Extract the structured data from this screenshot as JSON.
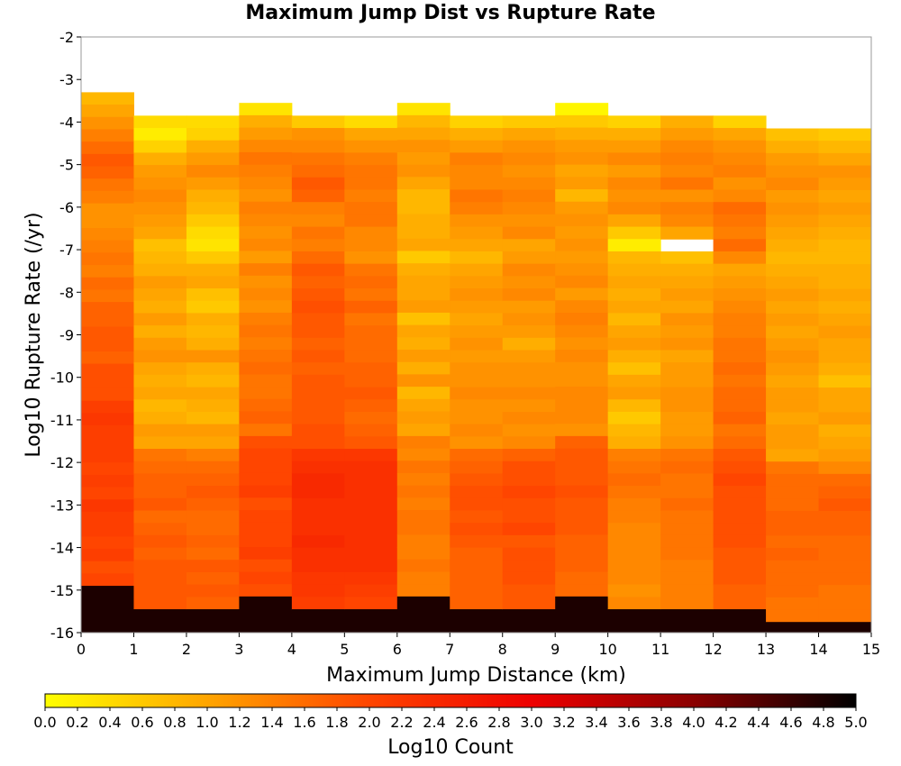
{
  "chart_data": {
    "type": "heatmap",
    "title": "Maximum Jump Dist vs Rupture Rate",
    "xlabel": "Maximum Jump Distance (km)",
    "ylabel": "Log10 Rupture Rate (/yr)",
    "xlim": [
      0,
      15
    ],
    "ylim": [
      -16,
      -2
    ],
    "x_ticks": [
      "0",
      "1",
      "2",
      "3",
      "4",
      "5",
      "6",
      "7",
      "8",
      "9",
      "10",
      "11",
      "12",
      "13",
      "14",
      "15"
    ],
    "y_ticks": [
      "-2",
      "-3",
      "-4",
      "-5",
      "-6",
      "-7",
      "-8",
      "-9",
      "-10",
      "-11",
      "-12",
      "-13",
      "-14",
      "-15",
      "-16"
    ],
    "x_bin_width": 1,
    "y_bin_width": 0.29,
    "colorbar": {
      "label": "Log10 Count",
      "min": 0.0,
      "max": 5.0,
      "ticks": [
        "0.0",
        "0.2",
        "0.4",
        "0.6",
        "0.8",
        "1.0",
        "1.2",
        "1.4",
        "1.6",
        "1.8",
        "2.0",
        "2.2",
        "2.4",
        "2.6",
        "2.8",
        "3.0",
        "3.2",
        "3.4",
        "3.6",
        "3.8",
        "4.0",
        "4.2",
        "4.4",
        "4.6",
        "4.8",
        "5.0"
      ],
      "stops": [
        "#ffff00",
        "#ffa500",
        "#ff4500",
        "#ee0000",
        "#8b0000",
        "#000000"
      ]
    },
    "series": [
      {
        "x": 0.5,
        "top": -3.3,
        "profile": [
          0.8,
          1.0,
          1.2,
          1.4,
          1.6,
          1.8,
          1.7,
          1.5,
          1.4,
          1.2,
          1.2,
          1.3,
          1.4,
          1.5,
          1.4,
          1.6,
          1.5,
          1.7,
          1.7,
          1.8,
          1.8,
          1.7,
          1.9,
          1.9,
          1.9,
          2.1,
          2.2,
          2.1,
          2.1,
          2.1,
          2.0,
          2.1,
          2.0,
          2.2,
          2.1,
          2.1,
          2.0,
          2.1,
          1.9,
          2.0,
          4.8
        ]
      },
      {
        "x": 1.5,
        "top": -3.85,
        "profile": [
          0.4,
          0.2,
          0.5,
          0.9,
          1.1,
          1.2,
          1.3,
          1.2,
          1.1,
          1.0,
          0.7,
          0.8,
          0.9,
          1.1,
          1.0,
          0.9,
          1.1,
          0.9,
          1.1,
          1.2,
          1.0,
          0.9,
          1.0,
          0.8,
          0.9,
          1.1,
          1.0,
          1.5,
          1.6,
          1.7,
          1.7,
          1.8,
          1.6,
          1.7,
          1.8,
          1.7,
          1.8,
          1.8,
          1.8,
          1.8,
          4.8
        ]
      },
      {
        "x": 2.5,
        "top": -3.85,
        "profile": [
          0.4,
          0.5,
          0.9,
          1.1,
          1.3,
          1.1,
          0.9,
          0.8,
          0.6,
          0.4,
          0.3,
          0.6,
          0.9,
          1.0,
          0.7,
          0.6,
          0.9,
          0.8,
          0.9,
          1.2,
          0.9,
          0.8,
          1.0,
          0.9,
          0.8,
          1.1,
          1.0,
          1.4,
          1.6,
          1.7,
          1.8,
          1.7,
          1.6,
          1.6,
          1.7,
          1.6,
          1.8,
          1.7,
          1.8,
          1.7,
          4.8
        ]
      },
      {
        "x": 3.5,
        "top": -3.55,
        "profile": [
          0.3,
          0.9,
          1.1,
          1.3,
          1.5,
          1.4,
          1.3,
          1.2,
          1.4,
          1.3,
          1.2,
          1.3,
          1.1,
          1.4,
          1.2,
          1.3,
          1.2,
          1.4,
          1.5,
          1.4,
          1.5,
          1.6,
          1.5,
          1.5,
          1.6,
          1.7,
          1.5,
          1.9,
          2.0,
          2.0,
          2.0,
          2.1,
          1.9,
          2.0,
          2.0,
          2.0,
          2.1,
          1.9,
          2.0,
          1.9,
          4.8
        ]
      },
      {
        "x": 4.5,
        "top": -3.85,
        "profile": [
          0.6,
          1.2,
          1.3,
          1.5,
          1.6,
          1.8,
          1.7,
          1.4,
          1.3,
          1.5,
          1.4,
          1.6,
          1.8,
          1.7,
          1.8,
          1.9,
          1.8,
          1.8,
          1.7,
          1.8,
          1.7,
          1.8,
          1.8,
          1.8,
          1.8,
          1.9,
          1.9,
          2.2,
          2.3,
          2.4,
          2.4,
          2.3,
          2.3,
          2.3,
          2.4,
          2.3,
          2.3,
          2.2,
          2.2,
          2.1,
          4.8
        ]
      },
      {
        "x": 5.5,
        "top": -3.85,
        "profile": [
          0.4,
          1.0,
          1.2,
          1.4,
          1.5,
          1.5,
          1.4,
          1.5,
          1.5,
          1.3,
          1.3,
          1.2,
          1.5,
          1.6,
          1.5,
          1.7,
          1.5,
          1.6,
          1.6,
          1.6,
          1.7,
          1.7,
          1.8,
          1.7,
          1.6,
          1.7,
          1.8,
          2.2,
          2.3,
          2.3,
          2.3,
          2.3,
          2.3,
          2.3,
          2.3,
          2.3,
          2.3,
          2.2,
          2.1,
          2.0,
          4.8
        ]
      },
      {
        "x": 6.5,
        "top": -3.55,
        "profile": [
          0.3,
          0.8,
          1.0,
          1.2,
          1.1,
          1.2,
          1.0,
          0.8,
          0.8,
          0.9,
          0.9,
          1.0,
          0.6,
          0.9,
          1.0,
          1.0,
          1.1,
          0.7,
          1.0,
          0.9,
          1.1,
          0.9,
          1.2,
          0.8,
          1.0,
          1.1,
          1.0,
          1.4,
          1.3,
          1.5,
          1.4,
          1.5,
          1.4,
          1.5,
          1.5,
          1.4,
          1.4,
          1.5,
          1.4,
          1.4,
          4.8
        ]
      },
      {
        "x": 7.5,
        "top": -3.85,
        "profile": [
          0.5,
          0.9,
          1.1,
          1.4,
          1.3,
          1.3,
          1.5,
          1.4,
          1.2,
          1.1,
          1.0,
          0.8,
          1.0,
          1.1,
          1.2,
          1.1,
          1.0,
          1.1,
          1.2,
          1.1,
          1.2,
          1.2,
          1.3,
          1.2,
          1.2,
          1.3,
          1.2,
          1.6,
          1.7,
          1.8,
          1.9,
          1.9,
          1.8,
          1.9,
          1.8,
          1.7,
          1.7,
          1.7,
          1.7,
          1.7,
          4.8
        ]
      },
      {
        "x": 8.5,
        "top": -3.85,
        "profile": [
          0.6,
          1.0,
          1.2,
          1.3,
          1.2,
          1.3,
          1.4,
          1.3,
          1.2,
          1.3,
          1.0,
          1.1,
          1.3,
          1.2,
          1.3,
          1.1,
          1.2,
          1.1,
          0.9,
          1.1,
          1.2,
          1.2,
          1.3,
          1.2,
          1.3,
          1.2,
          1.3,
          1.7,
          1.9,
          1.9,
          2.0,
          1.9,
          1.9,
          2.0,
          1.8,
          1.9,
          1.9,
          1.9,
          1.8,
          1.8,
          4.8
        ]
      },
      {
        "x": 9.5,
        "top": -3.55,
        "profile": [
          0.1,
          0.6,
          0.9,
          1.1,
          1.2,
          1.0,
          1.1,
          0.8,
          1.1,
          1.2,
          1.1,
          1.2,
          1.1,
          1.2,
          1.3,
          1.1,
          1.3,
          1.4,
          1.3,
          1.2,
          1.3,
          1.2,
          1.2,
          1.3,
          1.3,
          1.3,
          1.2,
          1.7,
          1.8,
          1.8,
          1.8,
          1.9,
          1.8,
          1.8,
          1.8,
          1.7,
          1.7,
          1.7,
          1.6,
          1.6,
          4.8
        ]
      },
      {
        "x": 10.5,
        "top": -3.85,
        "profile": [
          0.5,
          0.9,
          1.1,
          1.3,
          1.1,
          1.3,
          1.2,
          1.3,
          1.0,
          0.6,
          0.2,
          0.8,
          0.9,
          1.0,
          0.9,
          1.0,
          0.8,
          1.0,
          1.1,
          0.9,
          0.7,
          1.0,
          1.1,
          0.8,
          0.6,
          0.8,
          0.9,
          1.4,
          1.5,
          1.6,
          1.5,
          1.4,
          1.4,
          1.3,
          1.3,
          1.3,
          1.3,
          1.3,
          1.2,
          1.3,
          4.8
        ]
      },
      {
        "x": 11.5,
        "top": -3.85,
        "profile": [
          0.9,
          1.1,
          1.3,
          1.4,
          1.3,
          1.5,
          1.2,
          1.4,
          1.3,
          1.0,
          null,
          0.7,
          0.9,
          1.0,
          1.1,
          1.0,
          1.2,
          1.1,
          1.2,
          1.0,
          1.1,
          1.1,
          1.2,
          1.2,
          1.1,
          1.1,
          1.2,
          1.5,
          1.6,
          1.5,
          1.5,
          1.6,
          1.5,
          1.5,
          1.5,
          1.5,
          1.4,
          1.4,
          1.4,
          1.4,
          4.8
        ]
      },
      {
        "x": 12.5,
        "top": -3.85,
        "profile": [
          0.5,
          1.0,
          1.2,
          1.3,
          1.4,
          1.2,
          1.3,
          1.6,
          1.5,
          1.4,
          1.6,
          1.3,
          1.0,
          1.1,
          1.2,
          1.3,
          1.4,
          1.4,
          1.5,
          1.5,
          1.6,
          1.5,
          1.6,
          1.6,
          1.7,
          1.5,
          1.6,
          1.8,
          1.9,
          2.0,
          1.9,
          1.9,
          1.9,
          1.9,
          1.9,
          1.8,
          1.8,
          1.8,
          1.7,
          1.7,
          4.8
        ]
      },
      {
        "x": 13.5,
        "top": -4.15,
        "profile": [
          0.7,
          0.9,
          1.1,
          1.2,
          1.3,
          1.1,
          1.2,
          1.1,
          1.0,
          0.9,
          0.8,
          0.9,
          1.0,
          1.1,
          1.0,
          1.1,
          1.0,
          1.1,
          1.2,
          1.1,
          1.0,
          1.1,
          1.1,
          1.0,
          1.1,
          1.1,
          1.0,
          1.5,
          1.6,
          1.6,
          1.6,
          1.7,
          1.7,
          1.6,
          1.7,
          1.6,
          1.6,
          1.6,
          1.5,
          1.5,
          4.8
        ]
      },
      {
        "x": 14.5,
        "top": -4.15,
        "profile": [
          0.6,
          0.8,
          1.0,
          1.2,
          1.1,
          1.0,
          1.1,
          1.0,
          0.9,
          0.8,
          0.8,
          0.9,
          0.9,
          1.0,
          0.9,
          1.0,
          1.1,
          1.0,
          1.0,
          0.9,
          0.7,
          1.0,
          1.0,
          1.1,
          0.9,
          1.0,
          1.1,
          1.3,
          1.6,
          1.7,
          1.8,
          1.7,
          1.7,
          1.6,
          1.6,
          1.6,
          1.6,
          1.5,
          1.5,
          1.5,
          4.8
        ]
      }
    ]
  }
}
